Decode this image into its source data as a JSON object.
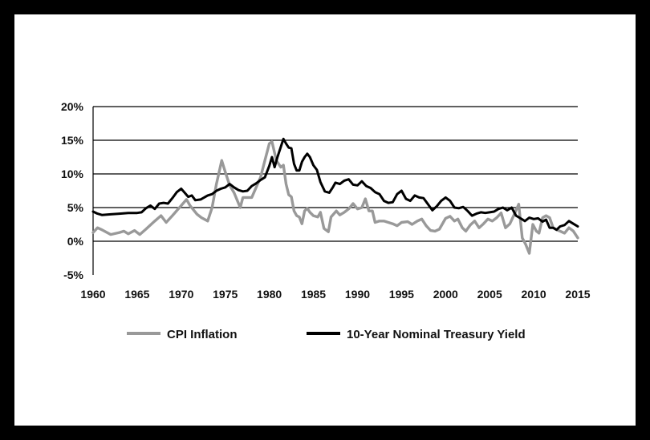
{
  "chart_data": {
    "type": "line",
    "title": "",
    "xlabel": "",
    "ylabel": "",
    "xlim": [
      1960,
      2015
    ],
    "ylim": [
      -5,
      20
    ],
    "grid": true,
    "legend": "bottom",
    "x_ticks": [
      "1960",
      "1965",
      "1970",
      "1975",
      "1980",
      "1985",
      "1990",
      "1995",
      "2000",
      "2005",
      "2010",
      "2015"
    ],
    "y_ticks": [
      "-5%",
      "0%",
      "5%",
      "10%",
      "15%",
      "20%"
    ],
    "series": [
      {
        "name": "CPI Inflation",
        "color": "#999999",
        "points": [
          [
            1960,
            1.3
          ],
          [
            1960.5,
            2.0
          ],
          [
            1961,
            1.7
          ],
          [
            1962,
            1.0
          ],
          [
            1963,
            1.3
          ],
          [
            1963.5,
            1.5
          ],
          [
            1964,
            1.1
          ],
          [
            1964.7,
            1.6
          ],
          [
            1965.3,
            1.0
          ],
          [
            1966,
            1.8
          ],
          [
            1967,
            3.0
          ],
          [
            1967.7,
            3.8
          ],
          [
            1968.3,
            2.8
          ],
          [
            1969,
            3.8
          ],
          [
            1970,
            5.3
          ],
          [
            1970.6,
            6.2
          ],
          [
            1971,
            5.3
          ],
          [
            1971.8,
            4.0
          ],
          [
            1972.3,
            3.5
          ],
          [
            1973,
            3.0
          ],
          [
            1973.5,
            5.0
          ],
          [
            1974,
            8.5
          ],
          [
            1974.6,
            12.0
          ],
          [
            1975,
            10.3
          ],
          [
            1975.5,
            8.3
          ],
          [
            1976,
            7.2
          ],
          [
            1976.7,
            5.0
          ],
          [
            1977,
            6.5
          ],
          [
            1977.5,
            6.5
          ],
          [
            1978,
            6.5
          ],
          [
            1978.5,
            8.0
          ],
          [
            1979,
            9.5
          ],
          [
            1979.5,
            12.0
          ],
          [
            1980,
            14.5
          ],
          [
            1980.3,
            14.8
          ],
          [
            1980.8,
            12.0
          ],
          [
            1981.3,
            11.0
          ],
          [
            1981.6,
            11.3
          ],
          [
            1981.9,
            8.5
          ],
          [
            1982.2,
            6.9
          ],
          [
            1982.5,
            6.6
          ],
          [
            1982.8,
            4.5
          ],
          [
            1983.1,
            3.8
          ],
          [
            1983.4,
            3.6
          ],
          [
            1983.7,
            2.6
          ],
          [
            1984,
            4.5
          ],
          [
            1984.3,
            4.9
          ],
          [
            1984.6,
            4.3
          ],
          [
            1985,
            3.8
          ],
          [
            1985.5,
            3.6
          ],
          [
            1985.8,
            4.3
          ],
          [
            1986.2,
            1.9
          ],
          [
            1986.7,
            1.4
          ],
          [
            1987,
            3.6
          ],
          [
            1987.6,
            4.5
          ],
          [
            1988,
            3.9
          ],
          [
            1988.5,
            4.3
          ],
          [
            1989,
            4.8
          ],
          [
            1989.5,
            5.6
          ],
          [
            1990,
            4.8
          ],
          [
            1990.5,
            5.0
          ],
          [
            1990.9,
            6.3
          ],
          [
            1991.3,
            4.5
          ],
          [
            1991.7,
            4.5
          ],
          [
            1992,
            2.8
          ],
          [
            1992.5,
            3.0
          ],
          [
            1993,
            3.0
          ],
          [
            1993.5,
            2.8
          ],
          [
            1994,
            2.6
          ],
          [
            1994.5,
            2.3
          ],
          [
            1995,
            2.8
          ],
          [
            1995.7,
            2.9
          ],
          [
            1996.2,
            2.5
          ],
          [
            1996.8,
            3.0
          ],
          [
            1997.3,
            3.3
          ],
          [
            1997.8,
            2.3
          ],
          [
            1998.3,
            1.6
          ],
          [
            1998.8,
            1.5
          ],
          [
            1999.3,
            1.8
          ],
          [
            2000,
            3.4
          ],
          [
            2000.5,
            3.7
          ],
          [
            2001,
            3.0
          ],
          [
            2001.4,
            3.3
          ],
          [
            2001.9,
            2.0
          ],
          [
            2002.3,
            1.5
          ],
          [
            2002.8,
            2.4
          ],
          [
            2003.3,
            3.0
          ],
          [
            2003.8,
            2.0
          ],
          [
            2004.3,
            2.6
          ],
          [
            2004.8,
            3.3
          ],
          [
            2005.3,
            3.0
          ],
          [
            2005.8,
            3.5
          ],
          [
            2006.3,
            4.2
          ],
          [
            2006.8,
            2.0
          ],
          [
            2007.3,
            2.6
          ],
          [
            2007.8,
            4.0
          ],
          [
            2008.3,
            5.5
          ],
          [
            2008.7,
            0.5
          ],
          [
            2009.1,
            -0.5
          ],
          [
            2009.5,
            -1.8
          ],
          [
            2009.9,
            2.5
          ],
          [
            2010.3,
            1.5
          ],
          [
            2010.6,
            1.2
          ],
          [
            2011,
            3.5
          ],
          [
            2011.4,
            3.8
          ],
          [
            2011.8,
            3.5
          ],
          [
            2012.2,
            2.0
          ],
          [
            2012.6,
            1.7
          ],
          [
            2013,
            1.5
          ],
          [
            2013.5,
            1.2
          ],
          [
            2014,
            2.0
          ],
          [
            2014.5,
            1.5
          ],
          [
            2015,
            0.5
          ]
        ]
      },
      {
        "name": "10-Year Nominal Treasury Yield",
        "color": "#000000",
        "points": [
          [
            1960,
            4.4
          ],
          [
            1960.5,
            4.1
          ],
          [
            1961,
            3.9
          ],
          [
            1962,
            4.0
          ],
          [
            1963,
            4.1
          ],
          [
            1964,
            4.2
          ],
          [
            1965,
            4.2
          ],
          [
            1965.5,
            4.3
          ],
          [
            1966,
            4.9
          ],
          [
            1966.5,
            5.3
          ],
          [
            1967,
            4.8
          ],
          [
            1967.5,
            5.6
          ],
          [
            1968,
            5.7
          ],
          [
            1968.5,
            5.6
          ],
          [
            1969,
            6.4
          ],
          [
            1969.5,
            7.3
          ],
          [
            1970,
            7.8
          ],
          [
            1970.4,
            7.2
          ],
          [
            1970.8,
            6.6
          ],
          [
            1971.2,
            6.8
          ],
          [
            1971.6,
            6.1
          ],
          [
            1972.2,
            6.2
          ],
          [
            1973,
            6.8
          ],
          [
            1973.5,
            7.0
          ],
          [
            1974,
            7.5
          ],
          [
            1974.5,
            7.8
          ],
          [
            1975,
            8.0
          ],
          [
            1975.5,
            8.5
          ],
          [
            1976,
            8.0
          ],
          [
            1976.5,
            7.6
          ],
          [
            1977,
            7.4
          ],
          [
            1977.5,
            7.5
          ],
          [
            1978,
            8.2
          ],
          [
            1978.5,
            8.6
          ],
          [
            1979,
            9.1
          ],
          [
            1979.5,
            9.5
          ],
          [
            1980,
            11.2
          ],
          [
            1980.3,
            12.5
          ],
          [
            1980.6,
            11.0
          ],
          [
            1980.9,
            12.4
          ],
          [
            1981.3,
            14.0
          ],
          [
            1981.6,
            15.2
          ],
          [
            1981.9,
            14.5
          ],
          [
            1982.2,
            13.9
          ],
          [
            1982.5,
            13.8
          ],
          [
            1982.8,
            11.5
          ],
          [
            1983.1,
            10.5
          ],
          [
            1983.4,
            10.5
          ],
          [
            1983.7,
            11.8
          ],
          [
            1984,
            12.5
          ],
          [
            1984.3,
            13.0
          ],
          [
            1984.6,
            12.5
          ],
          [
            1985,
            11.3
          ],
          [
            1985.4,
            10.6
          ],
          [
            1985.8,
            8.8
          ],
          [
            1986.3,
            7.4
          ],
          [
            1986.8,
            7.2
          ],
          [
            1987.2,
            8.0
          ],
          [
            1987.5,
            8.7
          ],
          [
            1988,
            8.5
          ],
          [
            1988.5,
            9.0
          ],
          [
            1989,
            9.2
          ],
          [
            1989.5,
            8.4
          ],
          [
            1990,
            8.3
          ],
          [
            1990.5,
            8.9
          ],
          [
            1991,
            8.2
          ],
          [
            1991.5,
            7.9
          ],
          [
            1992,
            7.3
          ],
          [
            1992.5,
            7.0
          ],
          [
            1993,
            6.0
          ],
          [
            1993.5,
            5.7
          ],
          [
            1994,
            5.8
          ],
          [
            1994.5,
            7.0
          ],
          [
            1995,
            7.5
          ],
          [
            1995.5,
            6.3
          ],
          [
            1996,
            6.0
          ],
          [
            1996.5,
            6.8
          ],
          [
            1997,
            6.5
          ],
          [
            1997.5,
            6.4
          ],
          [
            1998,
            5.5
          ],
          [
            1998.5,
            4.6
          ],
          [
            1999,
            5.2
          ],
          [
            1999.5,
            6.0
          ],
          [
            2000,
            6.5
          ],
          [
            2000.5,
            6.0
          ],
          [
            2001,
            5.0
          ],
          [
            2001.5,
            4.9
          ],
          [
            2002,
            5.1
          ],
          [
            2002.5,
            4.5
          ],
          [
            2003,
            3.8
          ],
          [
            2003.5,
            4.1
          ],
          [
            2004,
            4.3
          ],
          [
            2004.5,
            4.2
          ],
          [
            2005,
            4.3
          ],
          [
            2005.5,
            4.4
          ],
          [
            2006,
            4.8
          ],
          [
            2006.5,
            5.0
          ],
          [
            2007,
            4.6
          ],
          [
            2007.5,
            5.0
          ],
          [
            2008,
            3.8
          ],
          [
            2008.5,
            3.4
          ],
          [
            2009,
            3.0
          ],
          [
            2009.5,
            3.5
          ],
          [
            2010,
            3.3
          ],
          [
            2010.5,
            3.4
          ],
          [
            2011,
            2.9
          ],
          [
            2011.4,
            3.2
          ],
          [
            2011.8,
            2.0
          ],
          [
            2012.2,
            2.0
          ],
          [
            2012.6,
            1.7
          ],
          [
            2013,
            2.2
          ],
          [
            2013.5,
            2.4
          ],
          [
            2014,
            3.0
          ],
          [
            2014.5,
            2.6
          ],
          [
            2015,
            2.2
          ]
        ]
      }
    ]
  }
}
